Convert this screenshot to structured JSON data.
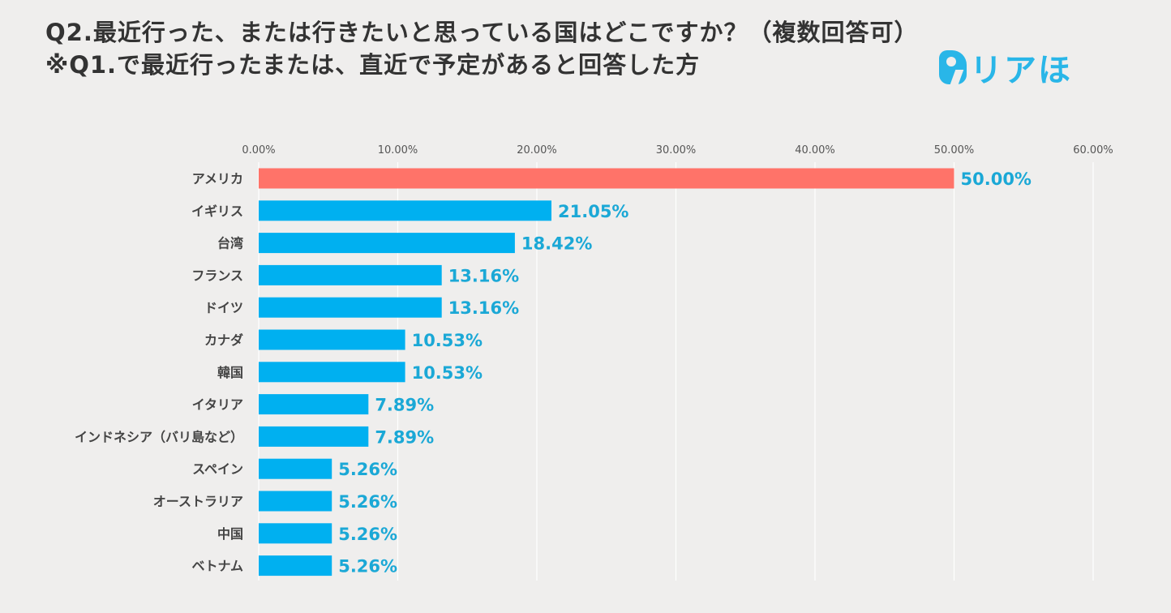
{
  "header": {
    "title_line1": "Q2.最近行った、または行きたいと思っている国はどこですか？（複数回答可）",
    "title_line2": "※Q1.で最近行ったまたは、直近で予定があると回答した方"
  },
  "logo": {
    "text": "リアほ"
  },
  "colors": {
    "highlight": "#ff7369",
    "bar": "#00b0f0",
    "label": "#1ba8d6",
    "grid": "#ffffff"
  },
  "chart_data": {
    "type": "bar",
    "orientation": "horizontal",
    "title": "Q2.最近行った、または行きたいと思っている国はどこですか？（複数回答可）",
    "xlim": [
      0,
      60
    ],
    "xticks": [
      "0.00%",
      "10.00%",
      "20.00%",
      "30.00%",
      "40.00%",
      "50.00%",
      "60.00%"
    ],
    "xtick_values": [
      0,
      10,
      20,
      30,
      40,
      50,
      60
    ],
    "categories": [
      "アメリカ",
      "イギリス",
      "台湾",
      "フランス",
      "ドイツ",
      "カナダ",
      "韓国",
      "イタリア",
      "インドネシア（バリ島など）",
      "スペイン",
      "オーストラリア",
      "中国",
      "ベトナム"
    ],
    "values": [
      50.0,
      21.05,
      18.42,
      13.16,
      13.16,
      10.53,
      10.53,
      7.89,
      7.89,
      5.26,
      5.26,
      5.26,
      5.26
    ],
    "value_labels": [
      "50.00%",
      "21.05%",
      "18.42%",
      "13.16%",
      "13.16%",
      "10.53%",
      "10.53%",
      "7.89%",
      "7.89%",
      "5.26%",
      "5.26%",
      "5.26%",
      "5.26%"
    ],
    "highlight_index": 0
  }
}
